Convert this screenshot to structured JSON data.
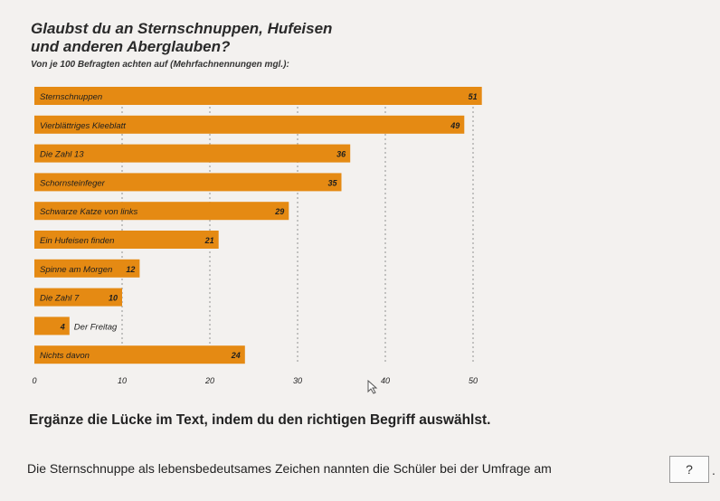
{
  "title_line1": "Glaubst du an Sternschnuppen, Hufeisen",
  "title_line2": "und anderen Aberglauben?",
  "subtitle": "Von je 100 Befragten achten auf (Mehrfachnennungen mgl.):",
  "chart_data": {
    "type": "bar",
    "orientation": "horizontal",
    "categories": [
      "Sternschnuppen",
      "Vierblättriges Kleeblatt",
      "Die Zahl 13",
      "Schornsteinfeger",
      "Schwarze Katze von links",
      "Ein Hufeisen finden",
      "Spinne am Morgen",
      "Die Zahl 7",
      "Der Freitag",
      "Nichts davon"
    ],
    "values": [
      51,
      49,
      36,
      35,
      29,
      21,
      12,
      10,
      4,
      24
    ],
    "xticks": [
      0,
      10,
      20,
      30,
      40,
      50
    ],
    "xlim": [
      0,
      52
    ],
    "grid": true,
    "bar_color": "#e58a13"
  },
  "question": "Ergänze die Lücke im Text, indem du den richtigen Begriff auswählst.",
  "sentence": "Die Sternschnuppe als lebensbedeutsames Zeichen nannten die Schüler bei der Umfrage am",
  "gap_placeholder": "?",
  "trailing": "."
}
